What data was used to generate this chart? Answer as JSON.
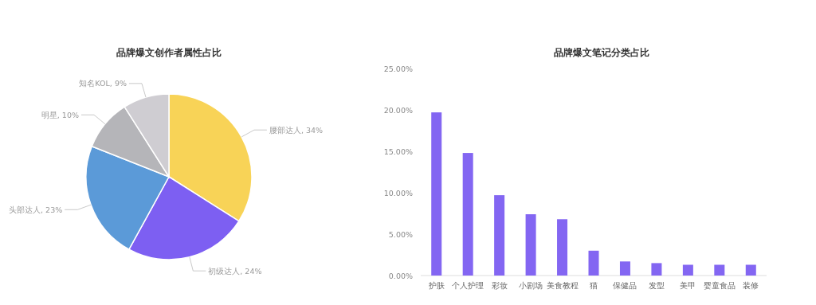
{
  "chart_data": [
    {
      "type": "pie",
      "title": "品牌爆文创作者属性占比",
      "categories": [
        "腰部达人",
        "初级达人",
        "头部达人",
        "明星",
        "知名KOL"
      ],
      "values": [
        34,
        24,
        23,
        10,
        9
      ],
      "value_labels": [
        "34%",
        "24%",
        "23%",
        "10%",
        "9%"
      ],
      "colors": [
        "#f8d357",
        "#7d5ff2",
        "#5b9ad8",
        "#b5b5b9",
        "#cfcdd2"
      ]
    },
    {
      "type": "bar",
      "title": "品牌爆文笔记分类占比",
      "categories": [
        "护肤",
        "个人护理",
        "彩妆",
        "小剧场",
        "美食教程",
        "猫",
        "保健品",
        "发型",
        "美甲",
        "婴童食品",
        "装修"
      ],
      "values": [
        19.7,
        14.8,
        9.7,
        7.4,
        6.8,
        3.0,
        1.7,
        1.5,
        1.3,
        1.3,
        1.3
      ],
      "color": "#8366f2",
      "ylim": [
        0,
        25
      ],
      "yticks": [
        {
          "value": 0,
          "label": "0.00%"
        },
        {
          "value": 5,
          "label": "5.00%"
        },
        {
          "value": 10,
          "label": "10.00%"
        },
        {
          "value": 15,
          "label": "15.00%"
        },
        {
          "value": 20,
          "label": "20.00%"
        },
        {
          "value": 25,
          "label": "25.00%"
        }
      ]
    }
  ]
}
